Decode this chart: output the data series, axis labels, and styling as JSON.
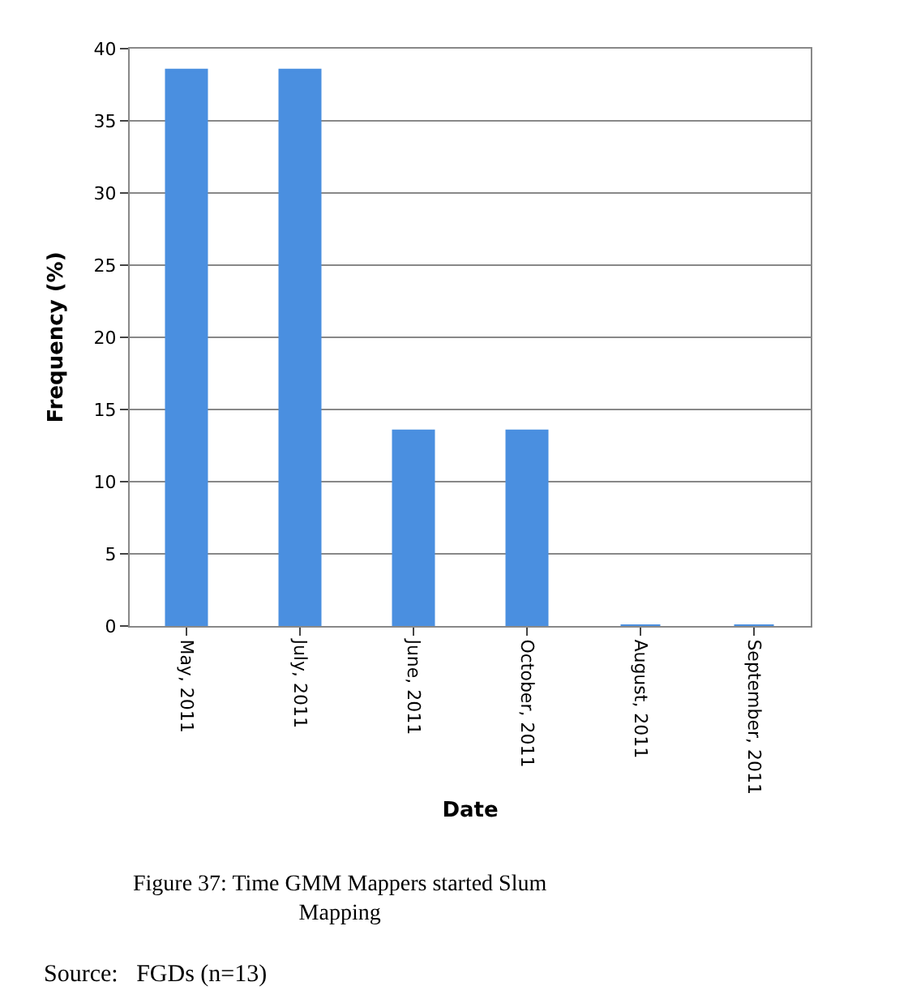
{
  "chart_data": {
    "type": "bar",
    "title": "Figure 37: Time GMM Mappers started Slum Mapping",
    "xlabel": "Date",
    "ylabel": "Frequency (%)",
    "categories": [
      "May, 2011",
      "July, 2011",
      "June, 2011",
      "October, 2011",
      "August, 2011",
      "September, 2011"
    ],
    "values": [
      38.5,
      38.5,
      13.5,
      13.5,
      0,
      0
    ],
    "color": "#4a8fe0",
    "ylim": [
      0,
      40
    ],
    "yticks": [
      0,
      5,
      10,
      15,
      20,
      25,
      30,
      35,
      40
    ],
    "grid": "y",
    "annotations": [
      "Source:   FGDs (n=13)"
    ]
  }
}
